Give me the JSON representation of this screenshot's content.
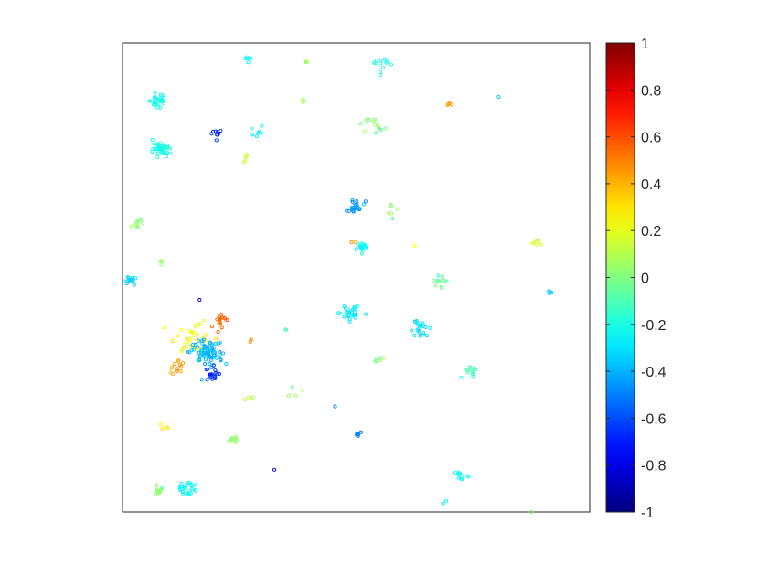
{
  "chart_data": {
    "type": "scatter",
    "title": "",
    "xlabel": "",
    "ylabel": "",
    "xlim": [
      0,
      100
    ],
    "ylim": [
      0,
      100
    ],
    "axes_ticks_visible": false,
    "box": true,
    "grid": false,
    "marker": "open-circle",
    "colormap": "jet",
    "colorbar": {
      "location": "right",
      "range": [
        -1,
        1
      ],
      "ticks": [
        1,
        0.8,
        0.6,
        0.4,
        0.2,
        0,
        -0.2,
        -0.4,
        -0.6,
        -0.8,
        -1
      ],
      "tick_labels": [
        "1",
        "0.8",
        "0.6",
        "0.4",
        "0.2",
        "0",
        "-0.2",
        "-0.4",
        "-0.6",
        "-0.8",
        "-1"
      ]
    },
    "clusters": [
      {
        "x": 26.8,
        "y": 96.6,
        "value": -0.22,
        "n": 5,
        "spread": 0.8
      },
      {
        "x": 39.2,
        "y": 96.1,
        "value": 0.08,
        "n": 4,
        "spread": 0.6
      },
      {
        "x": 55.5,
        "y": 95.3,
        "value": -0.18,
        "n": 12,
        "spread": 1.8
      },
      {
        "x": 7.5,
        "y": 87.7,
        "value": -0.22,
        "n": 28,
        "spread": 1.6
      },
      {
        "x": 38.7,
        "y": 87.5,
        "value": 0.05,
        "n": 4,
        "spread": 0.6
      },
      {
        "x": 70.0,
        "y": 86.9,
        "value": 0.45,
        "n": 4,
        "spread": 0.8
      },
      {
        "x": 80.5,
        "y": 88.5,
        "value": -0.35,
        "n": 1,
        "spread": 0
      },
      {
        "x": 53.5,
        "y": 82.5,
        "value": 0.0,
        "n": 14,
        "spread": 2.6
      },
      {
        "x": 29.0,
        "y": 81.0,
        "value": -0.25,
        "n": 8,
        "spread": 1.6
      },
      {
        "x": 20.0,
        "y": 80.5,
        "value": -0.68,
        "n": 9,
        "spread": 1.2
      },
      {
        "x": 26.0,
        "y": 75.5,
        "value": 0.15,
        "n": 5,
        "spread": 1.2
      },
      {
        "x": 8.5,
        "y": 77.5,
        "value": -0.2,
        "n": 45,
        "spread": 1.8
      },
      {
        "x": 50.0,
        "y": 64.8,
        "value": -0.45,
        "n": 22,
        "spread": 1.8
      },
      {
        "x": 58.5,
        "y": 64.5,
        "value": 0.05,
        "n": 6,
        "spread": 2.0
      },
      {
        "x": 3.5,
        "y": 61.5,
        "value": 0.02,
        "n": 10,
        "spread": 0.9
      },
      {
        "x": 51.5,
        "y": 56.5,
        "value": -0.25,
        "n": 16,
        "spread": 1.2
      },
      {
        "x": 49.5,
        "y": 57.5,
        "value": 0.45,
        "n": 2,
        "spread": 0.4
      },
      {
        "x": 62.5,
        "y": 56.7,
        "value": 0.25,
        "n": 1,
        "spread": 0
      },
      {
        "x": 88.8,
        "y": 57.5,
        "value": 0.15,
        "n": 6,
        "spread": 1.0
      },
      {
        "x": 8.0,
        "y": 53.5,
        "value": 0.05,
        "n": 3,
        "spread": 1.0
      },
      {
        "x": 68.0,
        "y": 49.0,
        "value": -0.05,
        "n": 12,
        "spread": 1.4
      },
      {
        "x": 1.5,
        "y": 49.5,
        "value": -0.32,
        "n": 16,
        "spread": 1.2
      },
      {
        "x": 91.5,
        "y": 47.0,
        "value": -0.35,
        "n": 4,
        "spread": 0.8
      },
      {
        "x": 48.5,
        "y": 42.5,
        "value": -0.3,
        "n": 30,
        "spread": 2.0
      },
      {
        "x": 63.5,
        "y": 39.0,
        "value": -0.3,
        "n": 22,
        "spread": 2.0
      },
      {
        "x": 34.5,
        "y": 38.5,
        "value": -0.1,
        "n": 2,
        "spread": 1.0
      },
      {
        "x": 54.5,
        "y": 32.5,
        "value": 0.02,
        "n": 6,
        "spread": 1.0
      },
      {
        "x": 74.5,
        "y": 30.5,
        "value": -0.12,
        "n": 12,
        "spread": 1.6
      },
      {
        "x": 27.5,
        "y": 36.5,
        "value": 0.55,
        "n": 2,
        "spread": 0.5
      },
      {
        "x": 15.0,
        "y": 37.5,
        "value": 0.25,
        "n": 35,
        "spread": 3.8
      },
      {
        "x": 18.0,
        "y": 34.0,
        "value": -0.4,
        "n": 80,
        "spread": 3.2
      },
      {
        "x": 19.5,
        "y": 29.5,
        "value": -0.65,
        "n": 18,
        "spread": 1.8
      },
      {
        "x": 20.5,
        "y": 41.0,
        "value": 0.55,
        "n": 16,
        "spread": 2.0
      },
      {
        "x": 11.5,
        "y": 31.0,
        "value": 0.45,
        "n": 14,
        "spread": 1.6
      },
      {
        "x": 16.5,
        "y": 45.2,
        "value": -0.85,
        "n": 1,
        "spread": 0
      },
      {
        "x": 27.5,
        "y": 24.5,
        "value": 0.1,
        "n": 4,
        "spread": 1.0
      },
      {
        "x": 37.5,
        "y": 26.0,
        "value": 0.05,
        "n": 4,
        "spread": 1.8
      },
      {
        "x": 45.5,
        "y": 22.5,
        "value": -0.5,
        "n": 1,
        "spread": 0
      },
      {
        "x": 9.2,
        "y": 18.5,
        "value": 0.3,
        "n": 4,
        "spread": 0.9
      },
      {
        "x": 23.5,
        "y": 15.5,
        "value": 0.02,
        "n": 10,
        "spread": 1.2
      },
      {
        "x": 50.5,
        "y": 16.5,
        "value": -0.5,
        "n": 7,
        "spread": 1.0
      },
      {
        "x": 32.5,
        "y": 9.0,
        "value": -0.75,
        "n": 1,
        "spread": 0
      },
      {
        "x": 72.5,
        "y": 7.5,
        "value": -0.25,
        "n": 10,
        "spread": 1.2
      },
      {
        "x": 7.5,
        "y": 4.5,
        "value": 0.0,
        "n": 12,
        "spread": 1.2
      },
      {
        "x": 14.0,
        "y": 5.0,
        "value": -0.25,
        "n": 28,
        "spread": 1.6
      },
      {
        "x": 68.8,
        "y": 2.0,
        "value": -0.2,
        "n": 2,
        "spread": 0.6
      },
      {
        "x": 87.5,
        "y": 0.0,
        "value": 0.05,
        "n": 1,
        "spread": 0
      }
    ]
  }
}
